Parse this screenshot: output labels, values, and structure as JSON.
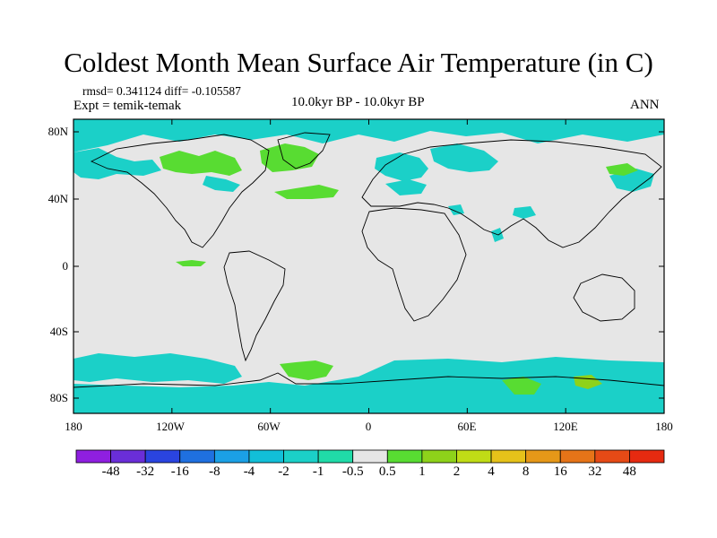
{
  "title": "Coldest Month Mean Surface Air Temperature (in C)",
  "stats": "rmsd= 0.341124 diff= -0.105587",
  "experiment": "Expt = temik-temak",
  "period": "10.0kyr BP - 10.0kyr BP",
  "season": "ANN",
  "axes": {
    "lat_ticks": [
      "80N",
      "40N",
      "0",
      "40S",
      "80S"
    ],
    "lon_ticks": [
      "180",
      "120W",
      "60W",
      "0",
      "60E",
      "120E",
      "180"
    ]
  },
  "colorbar": {
    "colors": [
      "#8f1fe0",
      "#6a2ed8",
      "#2a44e0",
      "#1f70e0",
      "#1ba0e6",
      "#12bfd8",
      "#1bd0c8",
      "#20dba8",
      "#e6e6e6",
      "#58dc32",
      "#8ed21a",
      "#c0dc16",
      "#e6c21a",
      "#e69818",
      "#e67418",
      "#e64a16",
      "#e62a10"
    ],
    "labels": [
      "-48",
      "-32",
      "-16",
      "-8",
      "-4",
      "-2",
      "-1",
      "-0.5",
      "0.5",
      "1",
      "2",
      "4",
      "8",
      "16",
      "32",
      "48"
    ]
  },
  "fills": {
    "background": "#e6e6e6",
    "cool_light": "#1bd0c8",
    "cool": "#12bfd8",
    "warm": "#58dc32",
    "warm2": "#8ed21a"
  }
}
